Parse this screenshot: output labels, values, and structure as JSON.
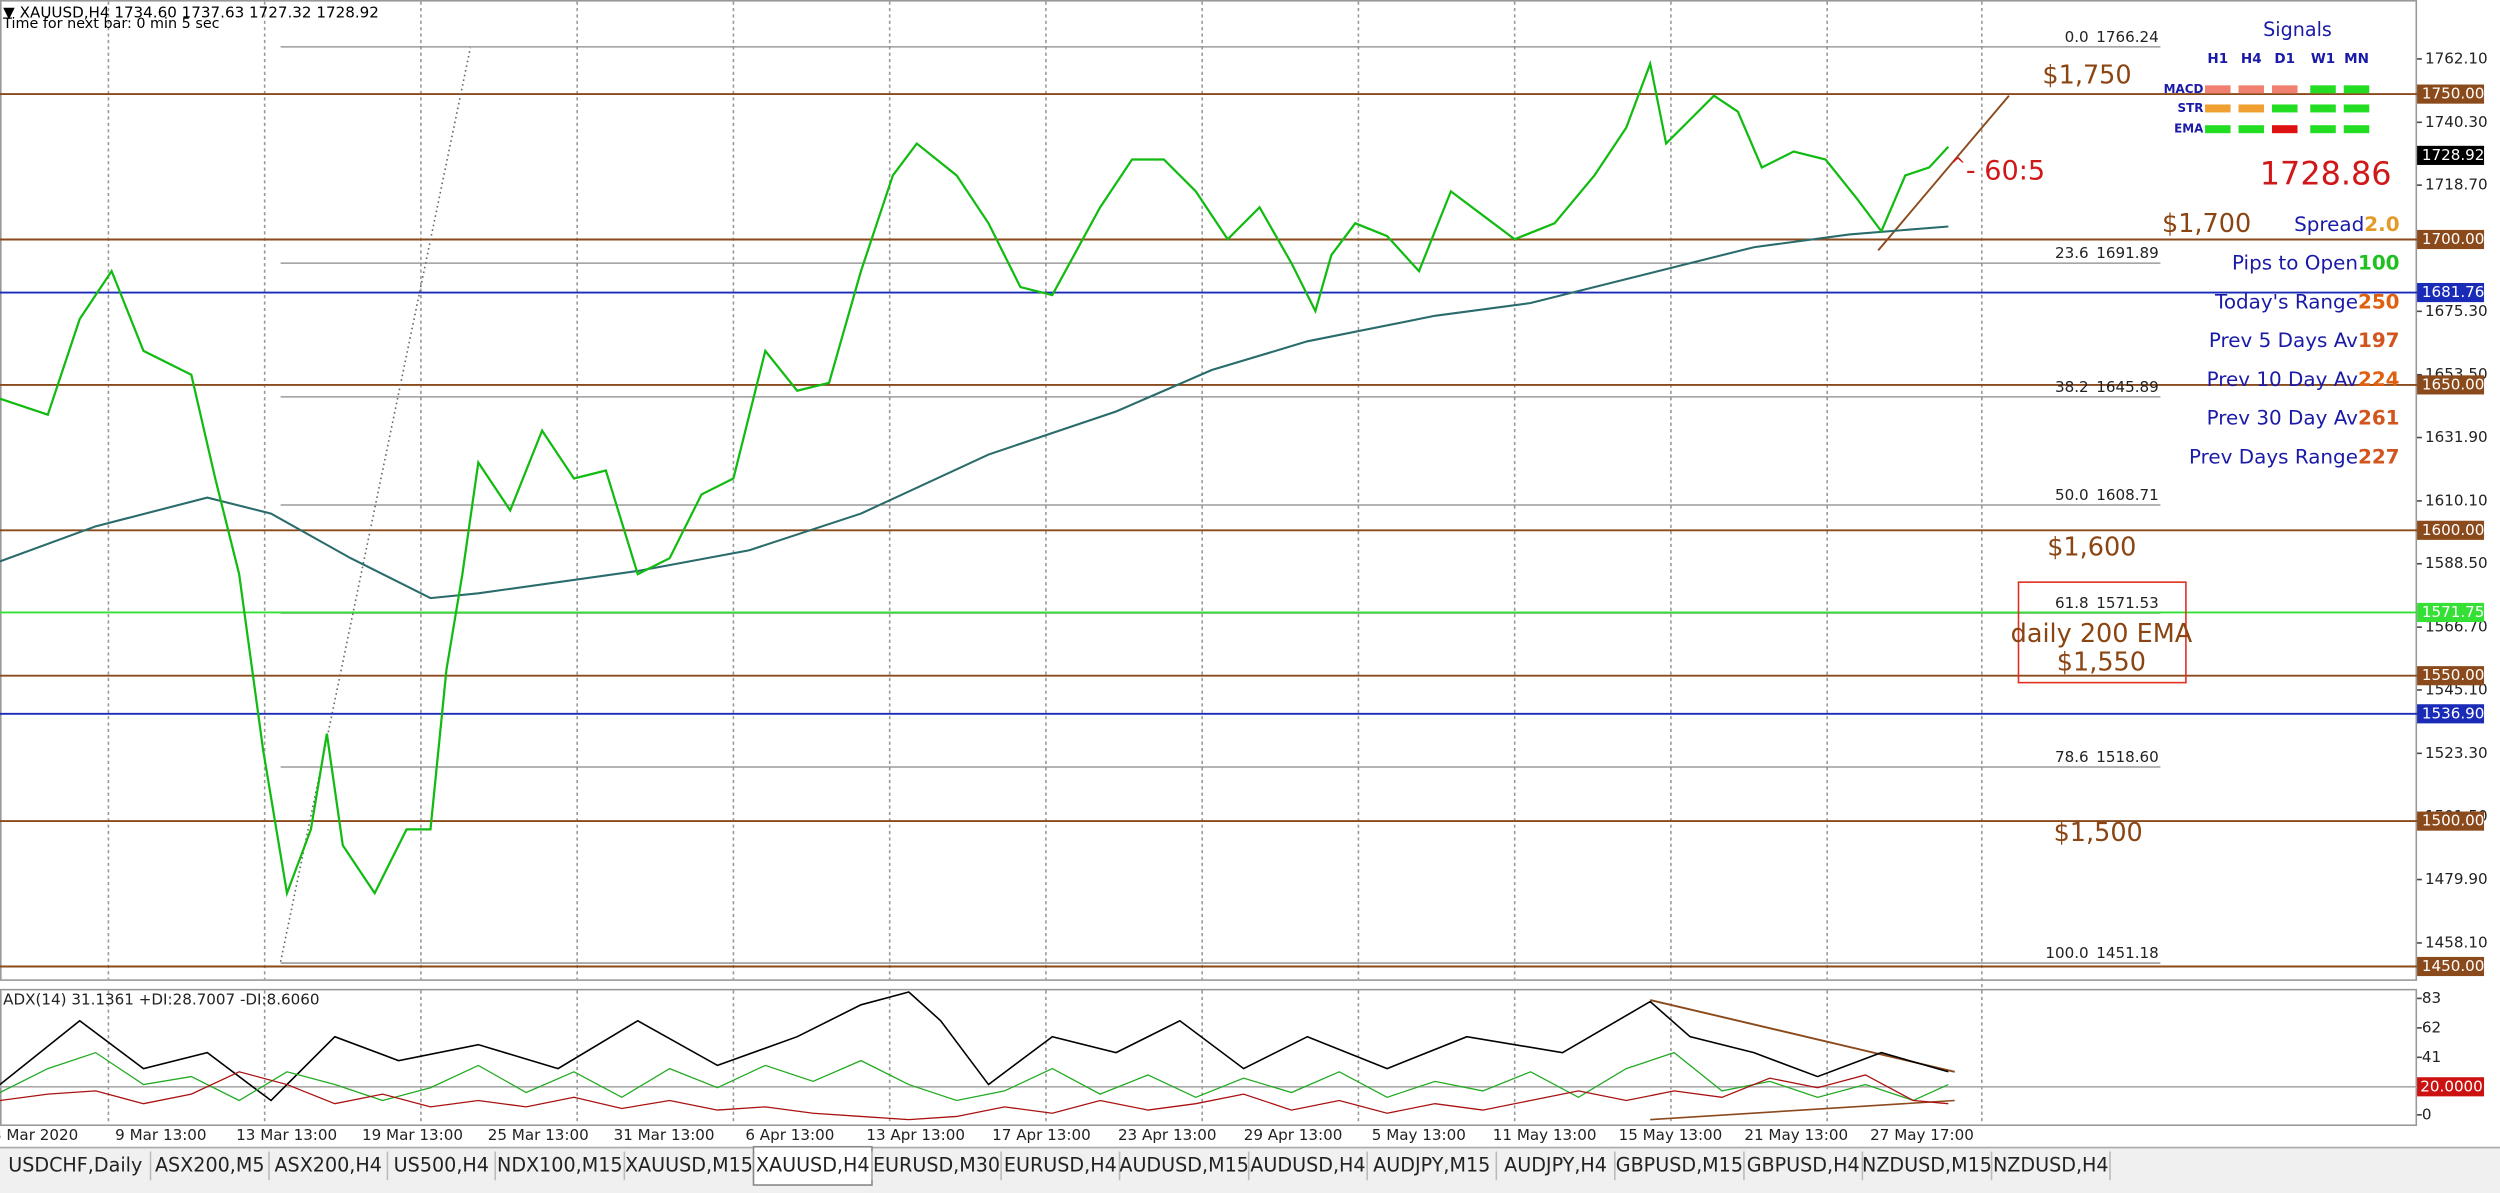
{
  "header": {
    "symbol_line": "▼ XAUUSD,H4  1734.60 1737.63 1727.32 1728.92",
    "timer": "Time for next bar: 0 min 5 sec"
  },
  "price_axis": {
    "ticks": [
      {
        "value": 1762.1,
        "label": "1762.10"
      },
      {
        "value": 1740.3,
        "label": "1740.30"
      },
      {
        "value": 1718.7,
        "label": "1718.70"
      },
      {
        "value": 1675.3,
        "label": "1675.30"
      },
      {
        "value": 1653.5,
        "label": "1653.50"
      },
      {
        "value": 1631.9,
        "label": "1631.90"
      },
      {
        "value": 1610.1,
        "label": "1610.10"
      },
      {
        "value": 1588.5,
        "label": "1588.50"
      },
      {
        "value": 1566.7,
        "label": "1566.70"
      },
      {
        "value": 1545.1,
        "label": "1545.10"
      },
      {
        "value": 1523.3,
        "label": "1523.30"
      },
      {
        "value": 1501.5,
        "label": "1501.50"
      },
      {
        "value": 1479.9,
        "label": "1479.90"
      },
      {
        "value": 1458.1,
        "label": "1458.10"
      }
    ]
  },
  "price_lines": [
    {
      "value": 1750,
      "label": "1750.00",
      "color": "#8b4a1c",
      "show_line": true
    },
    {
      "value": 1728.92,
      "label": "1728.92",
      "color": "#000000",
      "show_line": false
    },
    {
      "value": 1700,
      "label": "1700.00",
      "color": "#8b4a1c",
      "show_line": true
    },
    {
      "value": 1681.76,
      "label": "1681.76",
      "color": "#1a2bb8",
      "show_line": true
    },
    {
      "value": 1650,
      "label": "1650.00",
      "color": "#8b4a1c",
      "show_line": true
    },
    {
      "value": 1600,
      "label": "1600.00",
      "color": "#8b4a1c",
      "show_line": true
    },
    {
      "value": 1571.75,
      "label": "1571.75",
      "color": "#35e035",
      "show_line": true
    },
    {
      "value": 1550,
      "label": "1550.00",
      "color": "#8b4a1c",
      "show_line": true
    },
    {
      "value": 1536.9,
      "label": "1536.90",
      "color": "#1a2bb8",
      "show_line": true
    },
    {
      "value": 1500,
      "label": "1500.00",
      "color": "#8b4a1c",
      "show_line": true
    },
    {
      "value": 1450,
      "label": "1450.00",
      "color": "#8b4a1c",
      "show_line": true
    }
  ],
  "fibonacci": [
    {
      "ratio": "0.0",
      "value": 1766.24,
      "label": "1766.24"
    },
    {
      "ratio": "23.6",
      "value": 1691.89,
      "label": "1691.89"
    },
    {
      "ratio": "38.2",
      "value": 1645.89,
      "label": "1645.89"
    },
    {
      "ratio": "50.0",
      "value": 1608.71,
      "label": "1608.71"
    },
    {
      "ratio": "61.8",
      "value": 1571.53,
      "label": "1571.53"
    },
    {
      "ratio": "78.6",
      "value": 1518.6,
      "label": "1518.60"
    },
    {
      "ratio": "100.0",
      "value": 1451.18,
      "label": "1451.18"
    }
  ],
  "annotations": {
    "a1750": "$1,750",
    "a1700": "$1,700",
    "a1600": "$1,600",
    "ema_line1": "daily 200 EMA",
    "ema_line2": "$1,550",
    "a1500": "$1,500",
    "current_price": "1728.86",
    "ratio": "- 60:5"
  },
  "signals": {
    "title": "Signals",
    "timeframes": [
      "H1",
      "H4",
      "D1",
      "W1",
      "MN"
    ],
    "rows": [
      {
        "name": "MACD",
        "colors": [
          "#f08070",
          "#f08070",
          "#f08070",
          "#22dd22",
          "#22dd22"
        ]
      },
      {
        "name": "STR",
        "colors": [
          "#f0a030",
          "#f0a030",
          "#22dd22",
          "#22dd22",
          "#22dd22"
        ]
      },
      {
        "name": "EMA",
        "colors": [
          "#22dd22",
          "#22dd22",
          "#dd1111",
          "#22dd22",
          "#22dd22"
        ]
      }
    ]
  },
  "info_panel": [
    {
      "label": "Spread",
      "value": "2.0",
      "color": "#e39b27"
    },
    {
      "label": "Pips to Open",
      "value": "100",
      "color": "#1fc01f"
    },
    {
      "label": "Today's Range",
      "value": "250",
      "color": "#e06010"
    },
    {
      "label": "Prev 5 Days Av",
      "value": "197",
      "color": "#d2541e"
    },
    {
      "label": "Prev 10 Day Av",
      "value": "224",
      "color": "#e06010"
    },
    {
      "label": "Prev 30 Day Av",
      "value": "261",
      "color": "#d2541e"
    },
    {
      "label": "Prev Days Range",
      "value": "227",
      "color": "#d2541e"
    }
  ],
  "adx": {
    "title": "ADX(14) 31.1361 +DI:28.7007 -DI:8.6060",
    "ticks": [
      83,
      62,
      41,
      0
    ],
    "level": {
      "value": 20,
      "label": "20.0000"
    }
  },
  "time_axis": [
    "3 Mar 2020",
    "9 Mar 13:00",
    "13 Mar 13:00",
    "19 Mar 13:00",
    "25 Mar 13:00",
    "31 Mar 13:00",
    "6 Apr 13:00",
    "13 Apr 13:00",
    "17 Apr 13:00",
    "23 Apr 13:00",
    "29 Apr 13:00",
    "5 May 13:00",
    "11 May 13:00",
    "15 May 13:00",
    "21 May 13:00",
    "27 May 17:00"
  ],
  "tabs": [
    "USDCHF,Daily",
    "ASX200,M5",
    "ASX200,H4",
    "US500,H4",
    "NDX100,M15",
    "XAUUSD,M15",
    "XAUUSD,H4",
    "EURUSD,M30",
    "EURUSD,H4",
    "AUDUSD,M15",
    "AUDUSD,H4",
    "AUDJPY,M15",
    "AUDJPY,H4",
    "GBPUSD,M15",
    "GBPUSD,H4",
    "NZDUSD,M15",
    "NZDUSD,H4"
  ],
  "active_tab": 6
}
